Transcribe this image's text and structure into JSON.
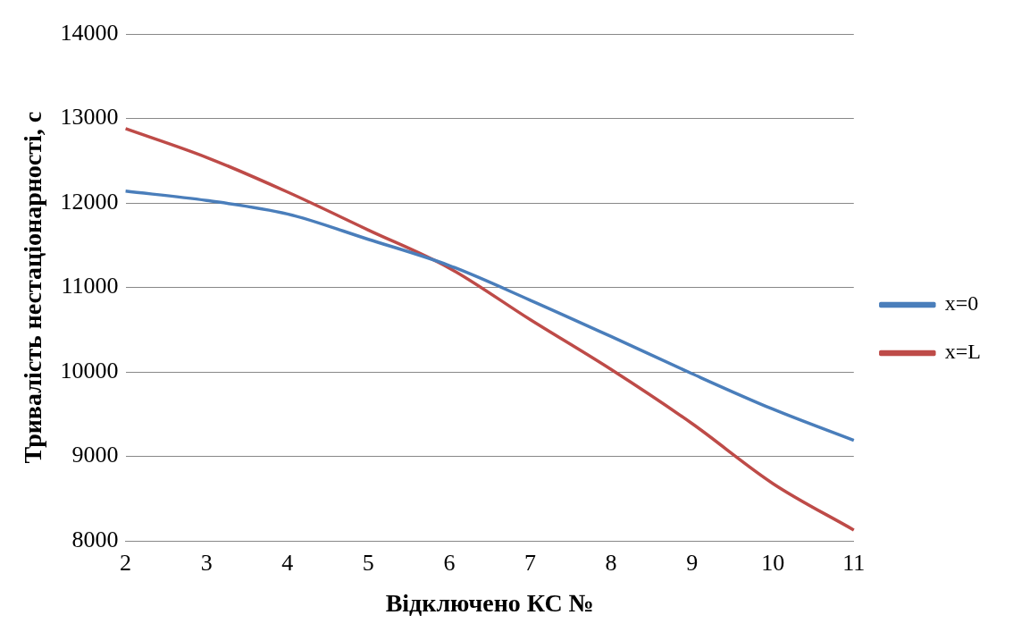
{
  "chart_data": {
    "type": "line",
    "xlabel": "Відключено КС №",
    "ylabel": "Тривалість нестаціонарності, с",
    "categories": [
      "2",
      "3",
      "4",
      "5",
      "6",
      "7",
      "8",
      "9",
      "10",
      "11"
    ],
    "series": [
      {
        "name": "x=0",
        "color": "#4a7ebb",
        "values": [
          12140,
          12030,
          11870,
          11570,
          11260,
          10850,
          10420,
          9980,
          9560,
          9190
        ]
      },
      {
        "name": "x=L",
        "color": "#be4b48",
        "values": [
          12880,
          12540,
          12130,
          11680,
          11230,
          10620,
          10030,
          9390,
          8680,
          8130
        ]
      }
    ],
    "ylim": [
      8000,
      14000
    ],
    "yticks": [
      8000,
      9000,
      10000,
      11000,
      12000,
      13000,
      14000
    ],
    "grid": "y",
    "legend": "right",
    "marker": "none",
    "line_style": "solid"
  }
}
